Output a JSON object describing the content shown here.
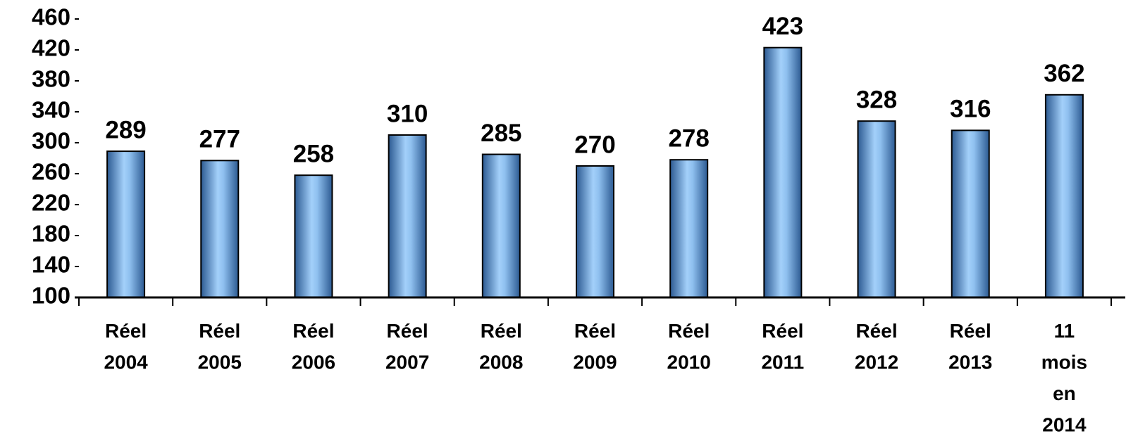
{
  "chart_data": {
    "type": "bar",
    "categories": [
      "Réel 2004",
      "Réel 2005",
      "Réel 2006",
      "Réel 2007",
      "Réel 2008",
      "Réel 2009",
      "Réel 2010",
      "Réel 2011",
      "Réel 2012",
      "Réel 2013",
      "11 mois en 2014"
    ],
    "values": [
      289,
      277,
      258,
      310,
      285,
      270,
      278,
      423,
      328,
      316,
      362
    ],
    "color": "#8fc0ef",
    "ylim": [
      100,
      460
    ],
    "yticks": [
      100,
      140,
      180,
      220,
      260,
      300,
      340,
      380,
      420,
      460
    ],
    "grid": false
  }
}
